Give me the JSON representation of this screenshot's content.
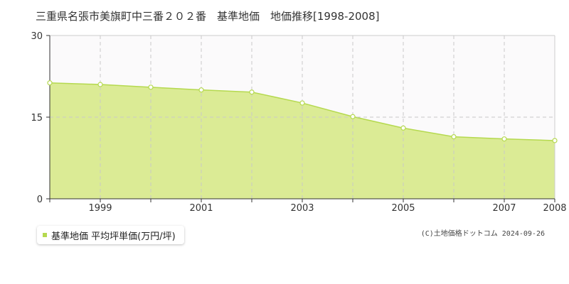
{
  "chart_data": {
    "type": "area",
    "title": "三重県名張市美旗町中三番２０２番　基準地価　地価推移[1998-2008]",
    "x": [
      1998,
      1999,
      2000,
      2001,
      2002,
      2003,
      2004,
      2005,
      2006,
      2007,
      2008
    ],
    "x_tick_labels": [
      "1999",
      "2001",
      "2003",
      "2005",
      "2007",
      "2008"
    ],
    "y_ticks": [
      "0",
      "15",
      "30"
    ],
    "ylim": [
      0,
      30
    ],
    "xlim": [
      1998,
      2008
    ],
    "series": [
      {
        "name": "基準地価 平均坪単価(万円/坪)",
        "values": [
          21.3,
          21.0,
          20.5,
          20.0,
          19.6,
          17.6,
          15.1,
          13.0,
          11.4,
          11.0,
          10.7
        ]
      }
    ],
    "grid": true,
    "legend_position": "bottom-left",
    "colors": {
      "fill": "#dbeb95",
      "line": "#b5d94f",
      "marker": "#ffffff"
    }
  },
  "legend": {
    "label": "基準地価 平均坪単価(万円/坪)"
  },
  "credit": "(C)土地価格ドットコム 2024-09-26"
}
